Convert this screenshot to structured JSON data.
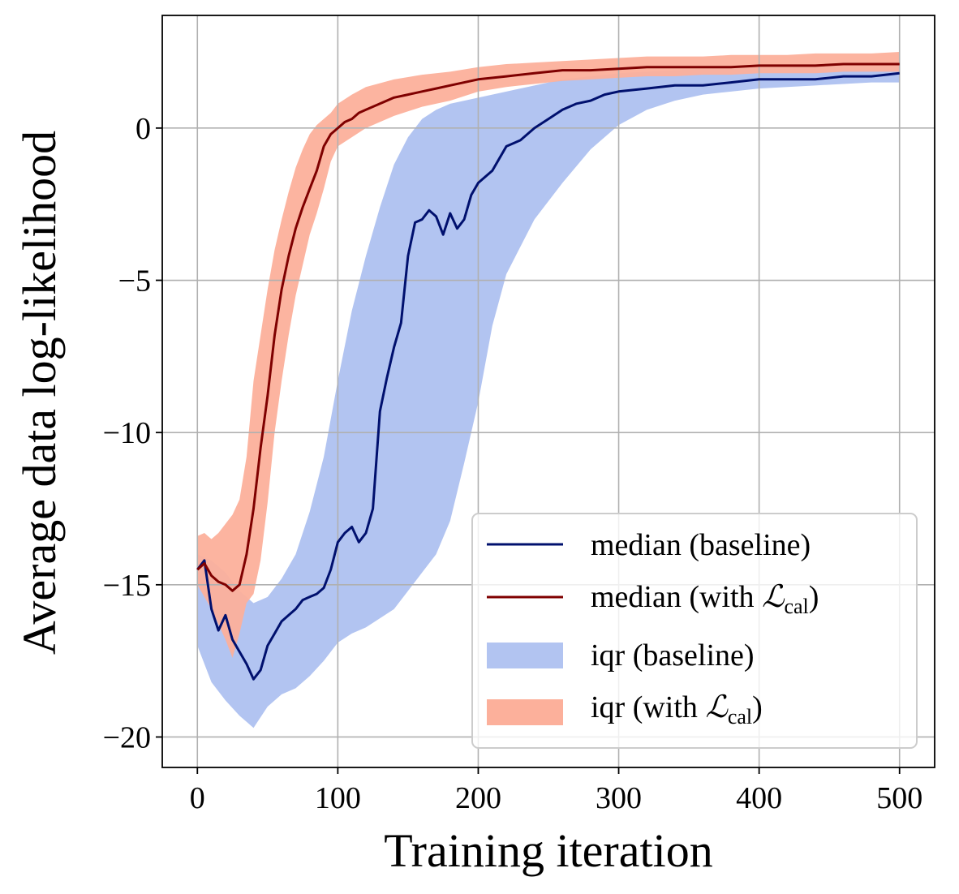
{
  "chart_data": {
    "type": "line",
    "xlabel": "Training iteration",
    "ylabel": "Average data log-likelihood",
    "xlim": [
      -25,
      525
    ],
    "ylim": [
      -21,
      3.7
    ],
    "xticks": [
      0,
      100,
      200,
      300,
      400,
      500
    ],
    "yticks": [
      0,
      -5,
      -10,
      -15,
      -20
    ],
    "x_tick_labels": [
      "0",
      "100",
      "200",
      "300",
      "400",
      "500"
    ],
    "y_tick_labels": [
      "0",
      "−5",
      "−10",
      "−15",
      "−20"
    ],
    "grid": true,
    "legend_position": "lower-right",
    "series": [
      {
        "name": "median (baseline)",
        "kind": "line",
        "color": "#00106e",
        "x": [
          0,
          5,
          10,
          15,
          20,
          25,
          30,
          35,
          40,
          45,
          50,
          55,
          60,
          65,
          70,
          75,
          80,
          85,
          90,
          95,
          100,
          105,
          110,
          115,
          120,
          125,
          130,
          135,
          140,
          145,
          150,
          155,
          160,
          165,
          170,
          175,
          180,
          185,
          190,
          195,
          200,
          210,
          220,
          230,
          240,
          250,
          260,
          270,
          280,
          290,
          300,
          320,
          340,
          360,
          380,
          400,
          420,
          440,
          460,
          480,
          500
        ],
        "y": [
          -14.5,
          -14.2,
          -15.8,
          -16.5,
          -16.0,
          -16.8,
          -17.2,
          -17.6,
          -18.1,
          -17.8,
          -17.0,
          -16.6,
          -16.2,
          -16.0,
          -15.8,
          -15.5,
          -15.4,
          -15.3,
          -15.1,
          -14.5,
          -13.6,
          -13.3,
          -13.1,
          -13.6,
          -13.3,
          -12.5,
          -9.3,
          -8.2,
          -7.2,
          -6.4,
          -4.2,
          -3.1,
          -3.0,
          -2.7,
          -2.9,
          -3.5,
          -2.8,
          -3.3,
          -3.0,
          -2.2,
          -1.8,
          -1.4,
          -0.6,
          -0.4,
          0.0,
          0.3,
          0.6,
          0.8,
          0.9,
          1.1,
          1.2,
          1.3,
          1.4,
          1.4,
          1.5,
          1.6,
          1.6,
          1.6,
          1.7,
          1.7,
          1.8
        ]
      },
      {
        "name": "median (with ℒcal)",
        "kind": "line",
        "color": "#7f0000",
        "x": [
          0,
          5,
          10,
          15,
          20,
          25,
          30,
          35,
          40,
          45,
          50,
          55,
          60,
          65,
          70,
          75,
          80,
          85,
          90,
          95,
          100,
          105,
          110,
          115,
          120,
          130,
          140,
          150,
          160,
          170,
          180,
          200,
          220,
          240,
          260,
          280,
          300,
          320,
          340,
          360,
          380,
          400,
          420,
          440,
          460,
          480,
          500
        ],
        "y": [
          -14.5,
          -14.3,
          -14.7,
          -14.9,
          -15.0,
          -15.2,
          -15.0,
          -14.0,
          -12.5,
          -10.5,
          -8.8,
          -6.8,
          -5.3,
          -4.2,
          -3.3,
          -2.6,
          -2.0,
          -1.4,
          -0.6,
          -0.2,
          0.0,
          0.2,
          0.3,
          0.5,
          0.6,
          0.8,
          1.0,
          1.1,
          1.2,
          1.3,
          1.4,
          1.6,
          1.7,
          1.8,
          1.9,
          1.9,
          1.95,
          2.0,
          2.0,
          2.0,
          2.0,
          2.05,
          2.05,
          2.05,
          2.1,
          2.1,
          2.1
        ]
      },
      {
        "name": "iqr (baseline)",
        "kind": "band",
        "color": "#b2c4f1",
        "x": [
          0,
          10,
          20,
          30,
          40,
          50,
          60,
          70,
          80,
          90,
          100,
          110,
          120,
          130,
          140,
          150,
          160,
          170,
          180,
          190,
          200,
          210,
          220,
          240,
          260,
          280,
          300,
          320,
          340,
          360,
          380,
          400,
          420,
          440,
          460,
          480,
          500
        ],
        "lower": [
          -17.0,
          -18.2,
          -18.8,
          -19.3,
          -19.7,
          -19.0,
          -18.6,
          -18.4,
          -18.0,
          -17.5,
          -16.9,
          -16.6,
          -16.4,
          -16.1,
          -15.8,
          -15.2,
          -14.6,
          -14.0,
          -12.9,
          -11.0,
          -9.0,
          -6.5,
          -4.8,
          -3.0,
          -1.8,
          -0.7,
          0.1,
          0.6,
          0.9,
          1.1,
          1.2,
          1.3,
          1.35,
          1.4,
          1.45,
          1.5,
          1.5
        ],
        "upper": [
          -14.0,
          -14.2,
          -14.6,
          -15.2,
          -15.6,
          -15.4,
          -14.8,
          -14.0,
          -12.6,
          -10.8,
          -8.3,
          -6.0,
          -4.2,
          -2.6,
          -1.2,
          -0.3,
          0.3,
          0.6,
          0.8,
          0.9,
          1.0,
          1.1,
          1.2,
          1.4,
          1.6,
          1.7,
          1.8,
          1.85,
          1.9,
          1.95,
          2.0,
          2.0,
          2.0,
          2.05,
          2.05,
          2.1,
          2.1
        ]
      },
      {
        "name": "iqr (with ℒcal)",
        "kind": "band",
        "color": "#fcb09b",
        "x": [
          0,
          5,
          10,
          15,
          20,
          25,
          30,
          35,
          40,
          45,
          50,
          55,
          60,
          65,
          70,
          75,
          80,
          85,
          90,
          95,
          100,
          110,
          120,
          140,
          160,
          180,
          200,
          220,
          240,
          260,
          280,
          300,
          320,
          340,
          360,
          380,
          400,
          420,
          440,
          460,
          480,
          500
        ],
        "lower": [
          -15.0,
          -15.4,
          -15.8,
          -16.3,
          -16.8,
          -17.4,
          -16.6,
          -15.6,
          -15.3,
          -14.2,
          -12.3,
          -10.0,
          -8.3,
          -6.8,
          -5.5,
          -4.5,
          -3.5,
          -2.8,
          -2.0,
          -1.1,
          -0.6,
          -0.3,
          0.0,
          0.4,
          0.7,
          0.9,
          1.2,
          1.35,
          1.45,
          1.55,
          1.6,
          1.65,
          1.7,
          1.7,
          1.75,
          1.75,
          1.8,
          1.8,
          1.8,
          1.85,
          1.85,
          1.85
        ],
        "upper": [
          -13.4,
          -13.3,
          -13.5,
          -13.3,
          -13.0,
          -12.7,
          -12.2,
          -10.8,
          -8.3,
          -6.8,
          -5.3,
          -4.0,
          -3.0,
          -2.1,
          -1.3,
          -0.7,
          -0.2,
          0.1,
          0.3,
          0.5,
          0.8,
          1.1,
          1.35,
          1.6,
          1.75,
          1.85,
          2.0,
          2.1,
          2.15,
          2.2,
          2.25,
          2.3,
          2.35,
          2.35,
          2.35,
          2.4,
          2.4,
          2.4,
          2.45,
          2.45,
          2.45,
          2.5
        ]
      }
    ]
  },
  "legend": {
    "items": [
      {
        "prefix": "median (baseline)",
        "sub": "",
        "suffix": ""
      },
      {
        "prefix": "median (with ",
        "sub": "cal",
        "suffix": ")"
      },
      {
        "prefix": "iqr (baseline)",
        "sub": "",
        "suffix": ""
      },
      {
        "prefix": "iqr (with ",
        "sub": "cal",
        "suffix": ")"
      }
    ],
    "script_symbol": "ℒ"
  }
}
